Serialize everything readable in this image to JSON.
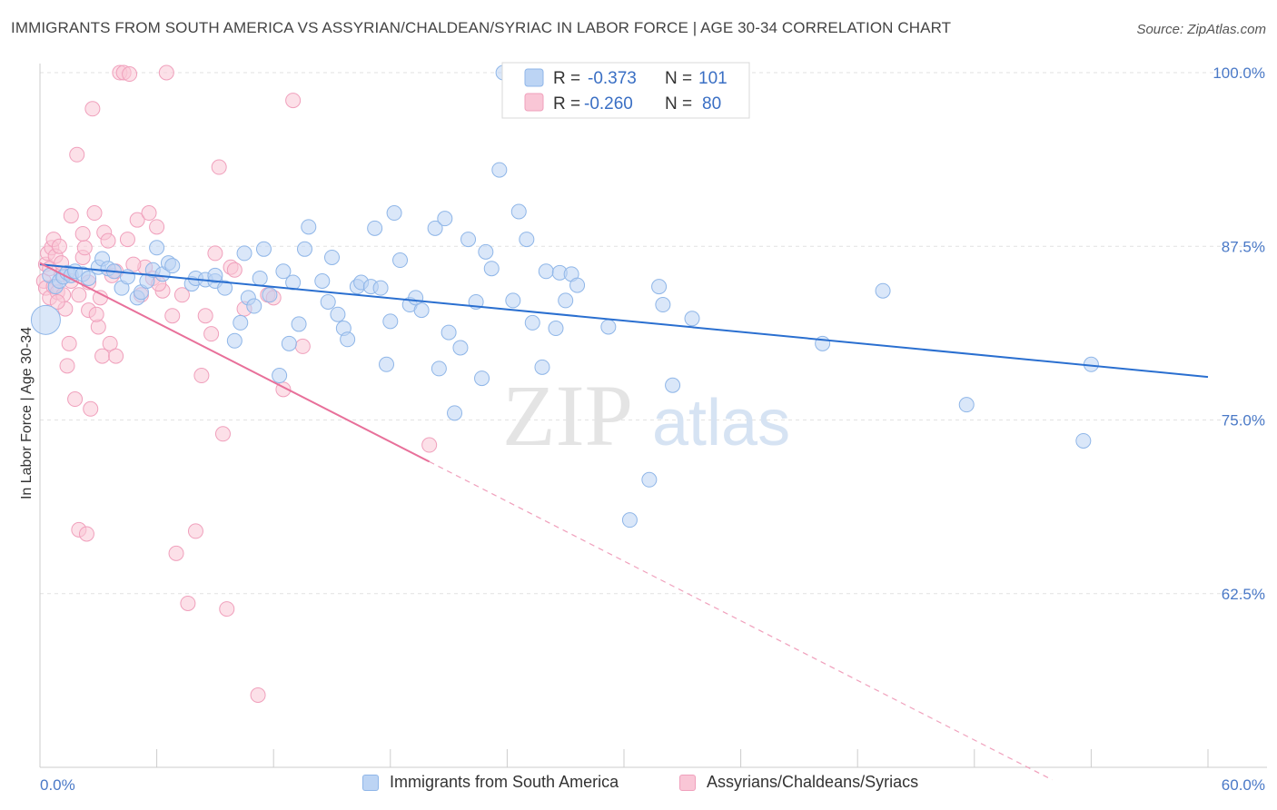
{
  "title": "IMMIGRANTS FROM SOUTH AMERICA VS ASSYRIAN/CHALDEAN/SYRIAC IN LABOR FORCE | AGE 30-34 CORRELATION CHART",
  "source": "Source: ZipAtlas.com",
  "watermark": {
    "zip": "ZIP",
    "atlas": "atlas"
  },
  "legend_box": [
    {
      "r_label": "R =",
      "r_value": "-0.373",
      "n_label": "N =",
      "n_value": "101",
      "color": "#8fb6e8",
      "fill": "#bcd4f4"
    },
    {
      "r_label": "R =",
      "r_value": "-0.260",
      "n_label": "N =",
      "n_value": "80",
      "color": "#f0a0bc",
      "fill": "#f9c6d6"
    }
  ],
  "legend_bottom": [
    {
      "label": "Immigrants from South America",
      "color": "#8fb6e8",
      "fill": "#bcd4f4"
    },
    {
      "label": "Assyrians/Chaldeans/Syriacs",
      "color": "#f0a0bc",
      "fill": "#f9c6d6"
    }
  ],
  "chart_data": {
    "type": "scatter",
    "title": "IMMIGRANTS FROM SOUTH AMERICA VS ASSYRIAN/CHALDEAN/SYRIAC IN LABOR FORCE | AGE 30-34 CORRELATION CHART",
    "xlabel": "",
    "ylabel": "In Labor Force | Age 30-34",
    "xlim": [
      0,
      60
    ],
    "ylim": [
      50,
      100
    ],
    "x_tick_labels": [
      "0.0%",
      "60.0%"
    ],
    "y_ticks": [
      100,
      87.5,
      75,
      62.5
    ],
    "y_tick_labels": [
      "100.0%",
      "87.5%",
      "75.0%",
      "62.5%"
    ],
    "grid": true,
    "legend": "top-center",
    "series": [
      {
        "name": "Immigrants from South America",
        "color": "#3a7bd5",
        "r": -0.373,
        "n": 101,
        "trend": {
          "x": [
            0,
            60
          ],
          "y": [
            86.2,
            78.1
          ]
        },
        "points": [
          [
            0.5,
            85.4
          ],
          [
            0.8,
            84.6
          ],
          [
            1.0,
            85.0
          ],
          [
            1.2,
            85.3
          ],
          [
            1.4,
            85.6
          ],
          [
            1.6,
            85.4
          ],
          [
            1.8,
            85.7
          ],
          [
            2.2,
            85.5
          ],
          [
            2.5,
            85.2
          ],
          [
            3.0,
            86.0
          ],
          [
            3.2,
            86.6
          ],
          [
            3.5,
            85.9
          ],
          [
            3.8,
            85.7
          ],
          [
            4.2,
            84.5
          ],
          [
            4.5,
            85.3
          ],
          [
            5.0,
            83.8
          ],
          [
            5.2,
            84.2
          ],
          [
            5.5,
            85.0
          ],
          [
            5.8,
            85.8
          ],
          [
            6.0,
            87.4
          ],
          [
            6.3,
            85.5
          ],
          [
            6.6,
            86.3
          ],
          [
            6.8,
            86.1
          ],
          [
            7.8,
            84.8
          ],
          [
            8.0,
            85.2
          ],
          [
            8.5,
            85.1
          ],
          [
            9.0,
            85.0
          ],
          [
            9.0,
            85.4
          ],
          [
            9.5,
            84.5
          ],
          [
            10.0,
            80.7
          ],
          [
            10.3,
            82.0
          ],
          [
            10.5,
            87.0
          ],
          [
            10.7,
            83.8
          ],
          [
            11.0,
            83.2
          ],
          [
            11.3,
            85.2
          ],
          [
            11.5,
            87.3
          ],
          [
            11.8,
            84.0
          ],
          [
            12.3,
            78.2
          ],
          [
            12.5,
            85.7
          ],
          [
            12.8,
            80.5
          ],
          [
            13.0,
            84.9
          ],
          [
            13.3,
            81.9
          ],
          [
            13.6,
            87.3
          ],
          [
            13.8,
            88.9
          ],
          [
            14.5,
            85.0
          ],
          [
            14.8,
            83.5
          ],
          [
            15.0,
            86.7
          ],
          [
            15.3,
            82.6
          ],
          [
            15.6,
            81.6
          ],
          [
            15.8,
            80.8
          ],
          [
            16.3,
            84.6
          ],
          [
            16.5,
            84.9
          ],
          [
            17.0,
            84.6
          ],
          [
            17.2,
            88.8
          ],
          [
            17.5,
            84.5
          ],
          [
            17.8,
            79.0
          ],
          [
            18.0,
            82.1
          ],
          [
            18.2,
            89.9
          ],
          [
            18.5,
            86.5
          ],
          [
            19.0,
            83.3
          ],
          [
            19.3,
            83.8
          ],
          [
            19.6,
            82.9
          ],
          [
            20.3,
            88.8
          ],
          [
            20.5,
            78.7
          ],
          [
            20.8,
            89.5
          ],
          [
            21.0,
            81.3
          ],
          [
            21.3,
            75.5
          ],
          [
            21.6,
            80.2
          ],
          [
            22.0,
            88.0
          ],
          [
            22.4,
            83.5
          ],
          [
            22.7,
            78.0
          ],
          [
            22.9,
            87.1
          ],
          [
            23.2,
            85.9
          ],
          [
            23.6,
            93.0
          ],
          [
            23.8,
            100.0
          ],
          [
            24.3,
            83.6
          ],
          [
            24.6,
            90.0
          ],
          [
            25.0,
            88.0
          ],
          [
            25.3,
            82.0
          ],
          [
            25.8,
            78.8
          ],
          [
            26.0,
            85.7
          ],
          [
            26.5,
            81.6
          ],
          [
            26.7,
            85.6
          ],
          [
            27.0,
            83.6
          ],
          [
            27.3,
            85.5
          ],
          [
            27.6,
            84.7
          ],
          [
            29.2,
            81.7
          ],
          [
            30.3,
            67.8
          ],
          [
            31.3,
            70.7
          ],
          [
            31.8,
            84.6
          ],
          [
            32.0,
            83.3
          ],
          [
            32.5,
            77.5
          ],
          [
            33.5,
            82.3
          ],
          [
            40.2,
            80.5
          ],
          [
            43.3,
            84.3
          ],
          [
            47.6,
            76.1
          ],
          [
            53.6,
            73.5
          ],
          [
            54.0,
            79.0
          ],
          [
            0.3,
            82.2
          ]
        ]
      },
      {
        "name": "Assyrians/Chaldeans/Syriacs",
        "color": "#e8709a",
        "r": -0.26,
        "n": 80,
        "trend": {
          "x": [
            0,
            20
          ],
          "y": [
            86.3,
            72.0
          ]
        },
        "trend_extension": {
          "x": [
            20,
            52
          ],
          "y": [
            72.0,
            49.1
          ]
        },
        "points": [
          [
            0.2,
            85.0
          ],
          [
            0.3,
            86.2
          ],
          [
            0.3,
            84.5
          ],
          [
            0.4,
            87.0
          ],
          [
            0.5,
            83.8
          ],
          [
            0.5,
            85.9
          ],
          [
            0.6,
            87.4
          ],
          [
            0.7,
            88.0
          ],
          [
            0.7,
            84.6
          ],
          [
            0.8,
            86.8
          ],
          [
            0.9,
            84.2
          ],
          [
            1.0,
            87.5
          ],
          [
            1.1,
            85.5
          ],
          [
            1.2,
            84.0
          ],
          [
            1.3,
            83.0
          ],
          [
            1.4,
            78.9
          ],
          [
            1.5,
            80.5
          ],
          [
            1.6,
            89.7
          ],
          [
            1.8,
            76.5
          ],
          [
            1.9,
            94.1
          ],
          [
            2.0,
            84.0
          ],
          [
            2.2,
            86.7
          ],
          [
            2.3,
            87.4
          ],
          [
            2.5,
            82.9
          ],
          [
            2.6,
            75.8
          ],
          [
            2.0,
            67.1
          ],
          [
            2.4,
            66.8
          ],
          [
            2.2,
            88.4
          ],
          [
            2.7,
            97.4
          ],
          [
            2.8,
            89.9
          ],
          [
            3.0,
            81.7
          ],
          [
            3.2,
            79.6
          ],
          [
            3.3,
            88.5
          ],
          [
            3.5,
            87.9
          ],
          [
            3.6,
            80.5
          ],
          [
            3.7,
            85.4
          ],
          [
            3.9,
            79.6
          ],
          [
            4.1,
            100.0
          ],
          [
            4.3,
            100.0
          ],
          [
            4.5,
            88.0
          ],
          [
            4.6,
            99.9
          ],
          [
            5.0,
            89.4
          ],
          [
            5.2,
            84.0
          ],
          [
            5.4,
            86.0
          ],
          [
            5.6,
            89.9
          ],
          [
            5.8,
            85.2
          ],
          [
            6.0,
            88.9
          ],
          [
            6.3,
            84.3
          ],
          [
            6.5,
            100.0
          ],
          [
            6.8,
            82.5
          ],
          [
            7.0,
            65.4
          ],
          [
            7.3,
            84.0
          ],
          [
            7.6,
            61.8
          ],
          [
            8.0,
            67.0
          ],
          [
            8.3,
            78.2
          ],
          [
            8.5,
            82.5
          ],
          [
            8.8,
            81.2
          ],
          [
            9.0,
            87.0
          ],
          [
            9.2,
            93.2
          ],
          [
            9.4,
            74.0
          ],
          [
            9.6,
            61.4
          ],
          [
            9.8,
            86.0
          ],
          [
            10.0,
            85.8
          ],
          [
            10.5,
            83.0
          ],
          [
            11.2,
            55.2
          ],
          [
            11.7,
            84.0
          ],
          [
            12.0,
            83.8
          ],
          [
            12.5,
            77.2
          ],
          [
            13.0,
            98.0
          ],
          [
            13.5,
            80.3
          ],
          [
            20.0,
            73.2
          ],
          [
            3.1,
            83.8
          ],
          [
            1.6,
            85.0
          ],
          [
            2.9,
            82.6
          ],
          [
            4.8,
            86.2
          ],
          [
            6.1,
            84.8
          ],
          [
            1.1,
            86.3
          ],
          [
            0.9,
            83.5
          ],
          [
            2.5,
            84.9
          ],
          [
            3.9,
            85.7
          ]
        ]
      }
    ]
  }
}
